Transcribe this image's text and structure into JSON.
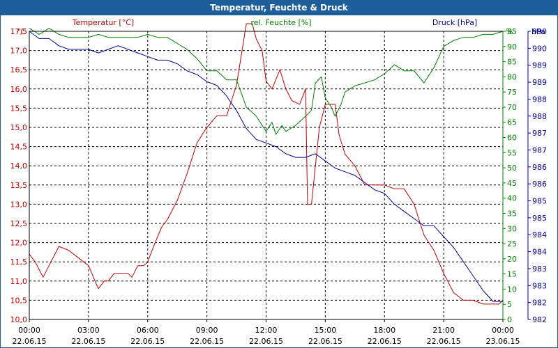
{
  "window": {
    "title": "Temperatur, Feuchte & Druck"
  },
  "colors": {
    "temperature": "#c00000",
    "humidity": "#008000",
    "pressure": "#000099",
    "grid": "#000000",
    "titlebar": "#1e5f99"
  },
  "chart_data": {
    "type": "line",
    "title": "Temperatur, Feuchte & Druck",
    "x_range_hours": [
      0,
      24
    ],
    "x_ticks": [
      {
        "time": "00:00",
        "date": "22.06.15"
      },
      {
        "time": "03:00",
        "date": "22.06.15"
      },
      {
        "time": "06:00",
        "date": "22.06.15"
      },
      {
        "time": "09:00",
        "date": "22.06.15"
      },
      {
        "time": "12:00",
        "date": "22.06.15"
      },
      {
        "time": "15:00",
        "date": "22.06.15"
      },
      {
        "time": "18:00",
        "date": "22.06.15"
      },
      {
        "time": "21:00",
        "date": "22.06.15"
      },
      {
        "time": "00:00",
        "date": "23.06.15"
      }
    ],
    "grid": true,
    "axes": {
      "left": {
        "unit": "°C",
        "ylim": [
          10.0,
          17.5
        ],
        "ticks": [
          "10,0",
          "10,5",
          "11,0",
          "11,5",
          "12,0",
          "12,5",
          "13,0",
          "13,5",
          "14,0",
          "14,5",
          "15,0",
          "15,5",
          "16,0",
          "16,5",
          "17,0",
          "17,5"
        ]
      },
      "right_humidity": {
        "unit": "%",
        "ylim": [
          0,
          95
        ],
        "ticks": [
          "0",
          "5",
          "10",
          "15",
          "20",
          "25",
          "30",
          "35",
          "40",
          "45",
          "50",
          "55",
          "60",
          "65",
          "70",
          "75",
          "80",
          "85",
          "90",
          "95"
        ]
      },
      "right_pressure": {
        "unit": "hPa",
        "ylim": [
          982,
          990
        ],
        "ticks": [
          "982",
          "982",
          "983",
          "983",
          "984",
          "984",
          "985",
          "985",
          "986",
          "986",
          "987",
          "987",
          "988",
          "988",
          "989",
          "989",
          "990",
          "990"
        ]
      }
    },
    "series": [
      {
        "name": "Temperatur [°C]",
        "axis": "left",
        "x_hours": [
          0,
          0.3,
          0.7,
          1.0,
          1.5,
          2.0,
          2.5,
          3.0,
          3.5,
          3.8,
          4.0,
          4.3,
          4.6,
          5.0,
          5.2,
          5.5,
          5.8,
          6.0,
          6.3,
          6.7,
          7.0,
          7.5,
          8.0,
          8.5,
          9.0,
          9.5,
          10.0,
          10.5,
          11.0,
          11.3,
          11.5,
          11.8,
          12.0,
          12.3,
          12.7,
          13.0,
          13.3,
          13.7,
          14.0,
          14.1,
          14.3,
          14.5,
          14.7,
          15.0,
          15.2,
          15.5,
          15.7,
          16.0,
          16.5,
          17.0,
          17.5,
          18.0,
          18.5,
          19.0,
          19.5,
          20.0,
          20.5,
          21.0,
          21.5,
          22.0,
          22.5,
          23.0,
          23.5,
          23.8,
          24.0
        ],
        "values": [
          11.7,
          11.5,
          11.1,
          11.4,
          11.9,
          11.8,
          11.6,
          11.4,
          10.8,
          11.0,
          11.0,
          11.2,
          11.2,
          11.2,
          11.1,
          11.4,
          11.4,
          11.5,
          11.9,
          12.4,
          12.6,
          13.1,
          13.8,
          14.6,
          15.0,
          15.3,
          15.3,
          16.1,
          17.7,
          17.7,
          17.3,
          17.0,
          16.2,
          16.0,
          16.5,
          16.0,
          15.7,
          15.6,
          16.0,
          13.0,
          13.0,
          14.0,
          15.0,
          15.6,
          15.6,
          15.6,
          14.8,
          14.3,
          14.0,
          13.5,
          13.5,
          13.5,
          13.4,
          13.4,
          13.0,
          12.2,
          11.8,
          11.2,
          10.7,
          10.5,
          10.5,
          10.4,
          10.4,
          10.4,
          10.5
        ]
      },
      {
        "name": "rel. Feuchte [%]",
        "axis": "right_humidity",
        "x_hours": [
          0,
          0.5,
          1.0,
          1.5,
          2.0,
          2.5,
          3.0,
          3.5,
          4.0,
          4.5,
          5.0,
          5.5,
          6.0,
          6.5,
          7.0,
          7.5,
          8.0,
          8.5,
          9.0,
          9.5,
          10.0,
          10.5,
          11.0,
          11.5,
          12.0,
          12.3,
          12.5,
          12.8,
          13.0,
          13.5,
          14.0,
          14.3,
          14.5,
          14.8,
          15.0,
          15.3,
          15.5,
          15.8,
          16.0,
          16.5,
          17.0,
          17.5,
          18.0,
          18.5,
          19.0,
          19.5,
          20.0,
          20.5,
          21.0,
          21.5,
          22.0,
          22.5,
          23.0,
          23.5,
          24.0
        ],
        "values": [
          96,
          94,
          96,
          94,
          93,
          93,
          93,
          94,
          93,
          93,
          93,
          93,
          94,
          93,
          93,
          91,
          89,
          86,
          82,
          82,
          79,
          79,
          70,
          67,
          62,
          65,
          61,
          64,
          62,
          64,
          67,
          69,
          78,
          80,
          73,
          70,
          67,
          71,
          75,
          77,
          78,
          79,
          81,
          84,
          82,
          82,
          78,
          83,
          90,
          92,
          93,
          93,
          94,
          94,
          95
        ]
      },
      {
        "name": "Druck [hPa]",
        "axis": "right_pressure",
        "x_hours": [
          0,
          0.5,
          1.0,
          1.5,
          2.0,
          2.5,
          3.0,
          3.5,
          4.0,
          4.5,
          5.0,
          5.5,
          6.0,
          6.5,
          7.0,
          7.5,
          8.0,
          8.5,
          9.0,
          9.5,
          10.0,
          10.5,
          11.0,
          11.5,
          12.0,
          12.5,
          13.0,
          13.5,
          14.0,
          14.5,
          15.0,
          15.5,
          16.0,
          16.5,
          17.0,
          17.5,
          18.0,
          18.5,
          19.0,
          19.5,
          20.0,
          20.5,
          21.0,
          21.5,
          22.0,
          22.5,
          23.0,
          23.5,
          24.0
        ],
        "values": [
          990.0,
          989.8,
          989.8,
          989.6,
          989.5,
          989.5,
          989.5,
          989.4,
          989.5,
          989.6,
          989.5,
          989.4,
          989.3,
          989.2,
          989.2,
          989.1,
          988.9,
          988.8,
          988.6,
          988.5,
          988.2,
          987.8,
          987.3,
          987.0,
          986.9,
          986.8,
          986.6,
          986.5,
          986.5,
          986.6,
          986.4,
          986.2,
          986.1,
          986.0,
          985.8,
          985.6,
          985.5,
          985.2,
          985.0,
          984.8,
          984.6,
          984.6,
          984.3,
          984.0,
          983.6,
          983.2,
          982.8,
          982.5,
          982.5
        ]
      }
    ]
  }
}
